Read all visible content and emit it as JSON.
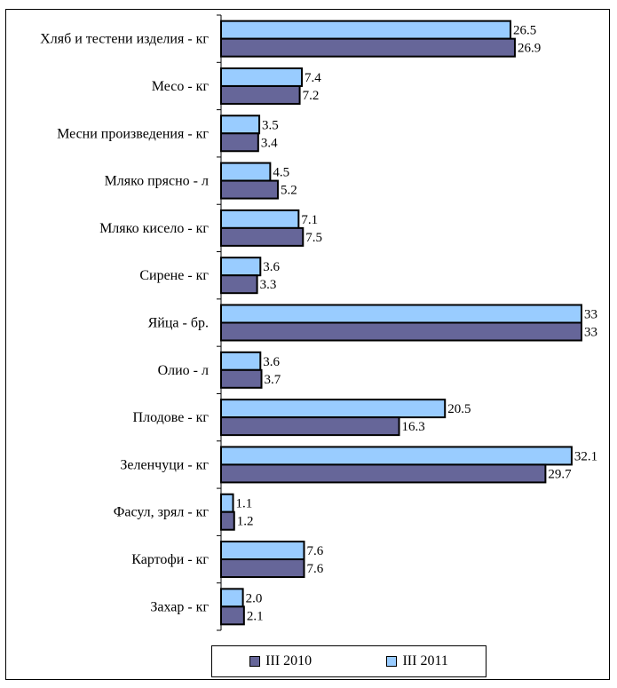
{
  "chart_data": {
    "type": "bar",
    "orientation": "horizontal",
    "categories": [
      "Хляб и тестени изделия - кг",
      "Месо - кг",
      "Месни произведения  - кг",
      "Мляко прясно - л",
      "Мляко кисело - кг",
      "Сирене - кг",
      "Яйца - бр.",
      "Олио - л",
      "Плодове - кг",
      "Зеленчуци  - кг",
      "Фасул, зрял - кг",
      "Картофи - кг",
      "Захар - кг"
    ],
    "series": [
      {
        "name": "III 2011",
        "color": "#99ccff",
        "values": [
          26.5,
          7.4,
          3.5,
          4.5,
          7.1,
          3.6,
          33,
          3.6,
          20.5,
          32.1,
          1.1,
          7.6,
          2.0
        ],
        "labels": [
          "26.5",
          "7.4",
          "3.5",
          "4.5",
          "7.1",
          "3.6",
          "33",
          "3.6",
          "20.5",
          "32.1",
          "1.1",
          "7.6",
          "2.0"
        ]
      },
      {
        "name": "III 2010",
        "color": "#666699",
        "values": [
          26.9,
          7.2,
          3.4,
          5.2,
          7.5,
          3.3,
          33,
          3.7,
          16.3,
          29.7,
          1.2,
          7.6,
          2.1
        ],
        "labels": [
          "26.9",
          "7.2",
          "3.4",
          "5.2",
          "7.5",
          "3.3",
          "33",
          "3.7",
          "16.3",
          "29.7",
          "1.2",
          "7.6",
          "2.1"
        ]
      }
    ],
    "xlim": [
      0,
      33
    ],
    "legend_position": "bottom",
    "legend_order": [
      "III 2010",
      "III 2011"
    ],
    "grid": false
  }
}
